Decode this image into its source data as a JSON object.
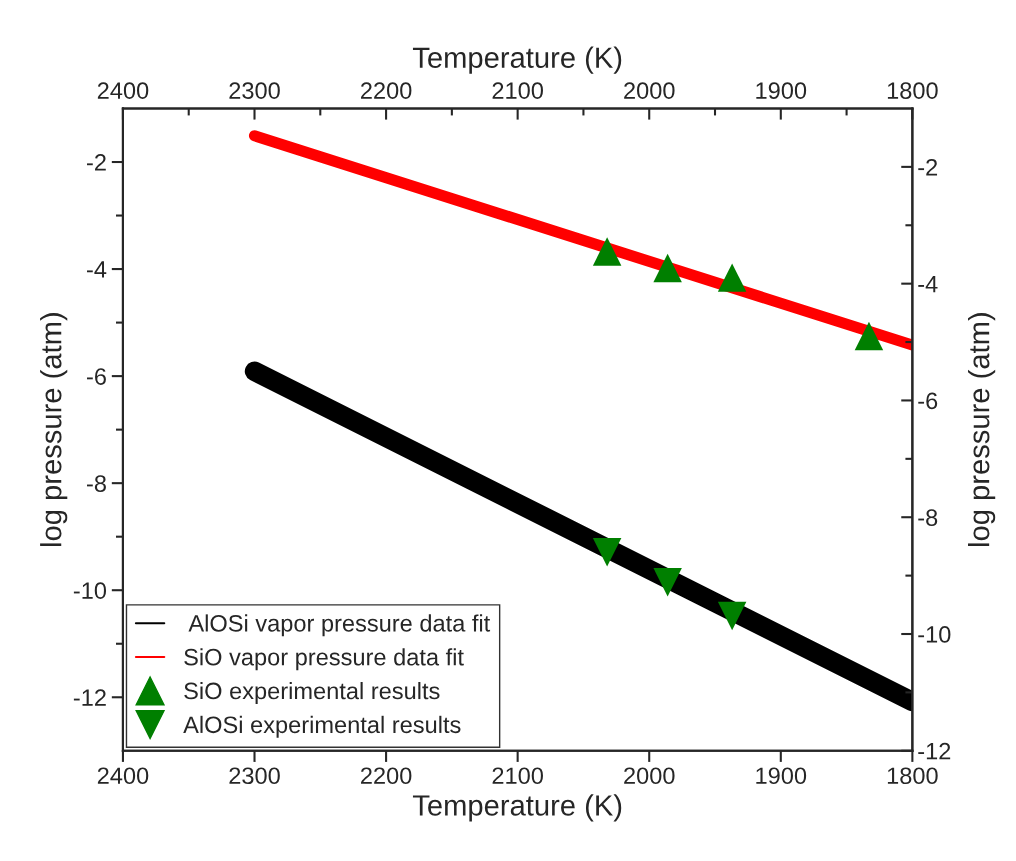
{
  "chart_data": {
    "type": "line",
    "xlabel": "Temperature (K)",
    "x2label": "Temperature (K)",
    "ylabel": "log pressure (atm)",
    "y2label": "log pressure (atm)",
    "xlim": [
      2400,
      1800
    ],
    "xticks": [
      2400,
      2300,
      2200,
      2100,
      2000,
      1900,
      1800
    ],
    "x2lim": [
      2400,
      1800
    ],
    "x2ticks": [
      2400,
      2300,
      2200,
      2100,
      2000,
      1900,
      1800
    ],
    "ylim": [
      -13,
      -1
    ],
    "yticks": [
      -12,
      -10,
      -8,
      -6,
      -4,
      -2
    ],
    "y2lim": [
      -12,
      -1
    ],
    "y2ticks": [
      -12,
      -10,
      -8,
      -6,
      -4,
      -2
    ],
    "grid": false,
    "legend": "bottom left",
    "series": [
      {
        "name": " AlOSi vapor pressure data fit",
        "color": "#000000",
        "x": [
          2300,
          1800
        ],
        "values": [
          -5.91,
          -12.08
        ]
      },
      {
        "name": "SiO vapor pressure data fit",
        "color": "#ff0000",
        "x": [
          2300,
          1800
        ],
        "values": [
          -1.51,
          -5.42
        ]
      },
      {
        "name": "SiO experimental results",
        "type": "scatter",
        "marker": "triangle",
        "color": "#007f00",
        "x": [
          2032,
          1986,
          1937,
          1833
        ],
        "values": [
          -3.67,
          -3.98,
          -4.16,
          -5.25
        ]
      },
      {
        "name": "AlOSi experimental results",
        "type": "scatter",
        "marker": "triangle-down",
        "color": "#007f00",
        "x": [
          2032,
          1986,
          1937
        ],
        "values": [
          -9.29,
          -9.85,
          -10.48
        ]
      }
    ]
  }
}
